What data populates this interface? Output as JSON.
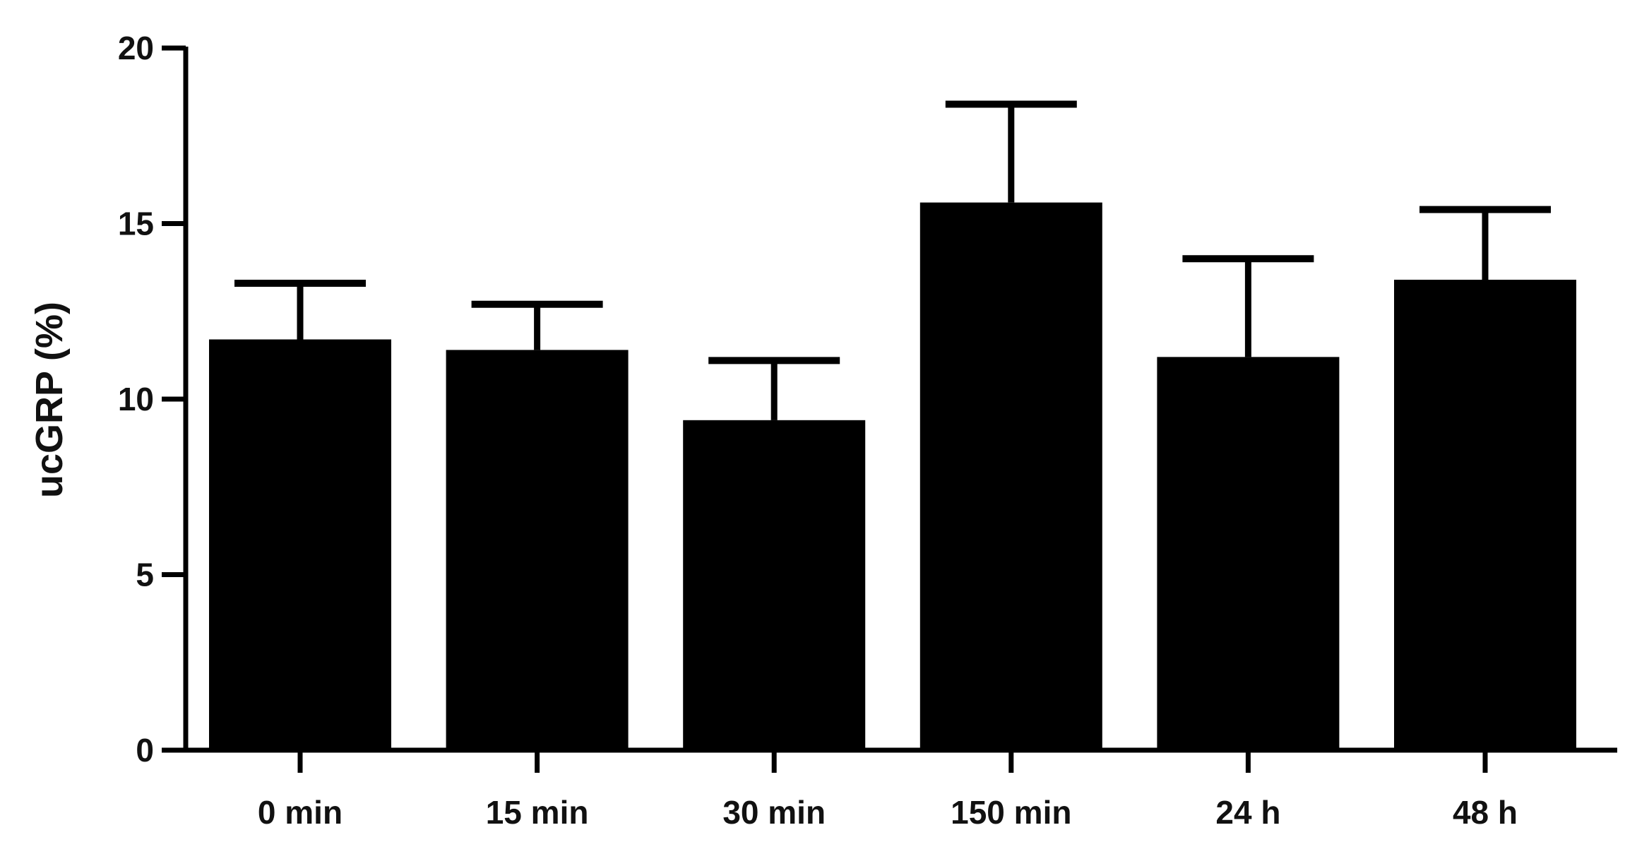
{
  "chart_data": {
    "type": "bar",
    "title": "",
    "xlabel": "",
    "ylabel": "ucGRP (%)",
    "ylim": [
      0,
      20
    ],
    "yticks": [
      0,
      5,
      10,
      15,
      20
    ],
    "grid": false,
    "legend": "none",
    "categories": [
      "0 min",
      "15 min",
      "30 min",
      "150 min",
      "24 h",
      "48 h"
    ],
    "series": [
      {
        "values": [
          11.7,
          11.4,
          9.4,
          15.6,
          11.2,
          13.4
        ],
        "error_upper": [
          1.6,
          1.3,
          1.7,
          2.8,
          2.8,
          2.0
        ],
        "color": "#000000"
      }
    ]
  }
}
